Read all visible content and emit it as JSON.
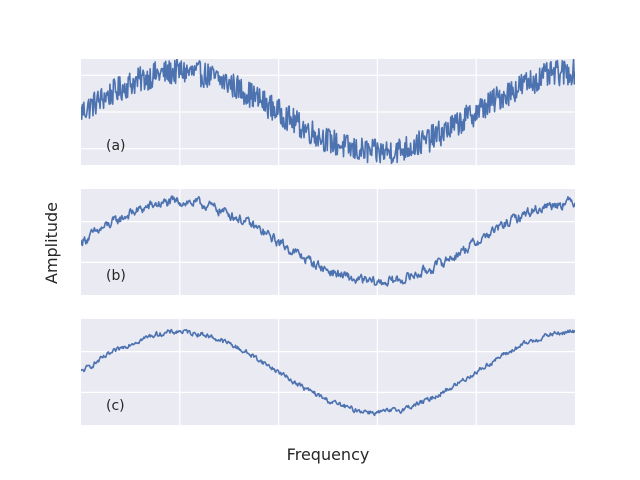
{
  "figure": {
    "xlabel": "Frequency",
    "ylabel": "Amplitude"
  },
  "chart_data": [
    {
      "type": "line",
      "annotation": "(a)",
      "noise": "high",
      "xlim": [
        0,
        2.5
      ],
      "ylim": [
        -1.3,
        1.3
      ],
      "x_gridlines": [
        0.5,
        1.0,
        1.5,
        2.0
      ],
      "y_gridlines": [
        -0.9,
        0.0,
        0.9
      ],
      "grid": true,
      "series": [
        {
          "color": "#4c72b0",
          "x": [
            0,
            0.125,
            0.25,
            0.375,
            0.5,
            0.625,
            0.75,
            0.875,
            1.0,
            1.125,
            1.25,
            1.375,
            1.5,
            1.625,
            1.75,
            1.875,
            2.0,
            2.125,
            2.25,
            2.375,
            2.5
          ],
          "y": [
            0.0,
            0.38,
            0.7,
            0.92,
            1.0,
            0.92,
            0.7,
            0.38,
            0.0,
            -0.38,
            -0.7,
            -0.92,
            -1.0,
            -0.92,
            -0.7,
            -0.38,
            0.0,
            0.38,
            0.7,
            0.92,
            1.0
          ]
        }
      ]
    },
    {
      "type": "line",
      "annotation": "(b)",
      "noise": "medium",
      "xlim": [
        0,
        2.5
      ],
      "ylim": [
        -1.3,
        1.3
      ],
      "x_gridlines": [
        0.5,
        1.0,
        1.5,
        2.0
      ],
      "y_gridlines": [
        -0.5,
        0.5
      ],
      "grid": true,
      "series": [
        {
          "color": "#4c72b0",
          "x": [
            0,
            0.125,
            0.25,
            0.375,
            0.5,
            0.625,
            0.75,
            0.875,
            1.0,
            1.125,
            1.25,
            1.375,
            1.5,
            1.625,
            1.75,
            1.875,
            2.0,
            2.125,
            2.25,
            2.375,
            2.5
          ],
          "y": [
            0.0,
            0.38,
            0.7,
            0.92,
            1.0,
            0.92,
            0.7,
            0.38,
            0.0,
            -0.38,
            -0.7,
            -0.92,
            -1.0,
            -0.92,
            -0.7,
            -0.38,
            0.0,
            0.38,
            0.7,
            0.92,
            1.0
          ]
        }
      ]
    },
    {
      "type": "line",
      "annotation": "(c)",
      "noise": "low",
      "xlim": [
        0,
        2.5
      ],
      "ylim": [
        -1.3,
        1.3
      ],
      "x_gridlines": [
        0.5,
        1.0,
        1.5,
        2.0
      ],
      "y_gridlines": [
        -0.5,
        0.5
      ],
      "grid": true,
      "series": [
        {
          "color": "#4c72b0",
          "x": [
            0,
            0.125,
            0.25,
            0.375,
            0.5,
            0.625,
            0.75,
            0.875,
            1.0,
            1.125,
            1.25,
            1.375,
            1.5,
            1.625,
            1.75,
            1.875,
            2.0,
            2.125,
            2.25,
            2.375,
            2.5
          ],
          "y": [
            0.0,
            0.38,
            0.7,
            0.92,
            1.0,
            0.92,
            0.7,
            0.38,
            0.0,
            -0.38,
            -0.7,
            -0.92,
            -1.0,
            -0.92,
            -0.7,
            -0.38,
            0.0,
            0.38,
            0.7,
            0.92,
            1.0
          ]
        }
      ]
    }
  ],
  "style": {
    "axes_background": "#eaeaf2",
    "grid_color": "#ffffff",
    "line_color": "#4c72b0"
  }
}
